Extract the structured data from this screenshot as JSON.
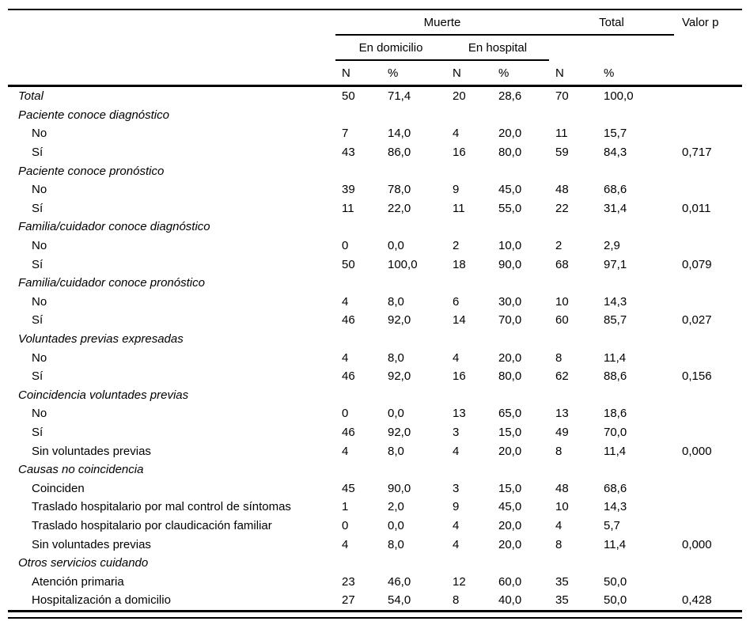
{
  "table": {
    "header": {
      "muerte": "Muerte",
      "total": "Total",
      "valor_p": "Valor p",
      "en_domicilio": "En domicilio",
      "en_hospital": "En hospital",
      "col_n": "N",
      "col_pct": "%"
    },
    "rows": [
      {
        "label": "Total",
        "style": "group",
        "cells": [
          "50",
          "71,4",
          "20",
          "28,6",
          "70",
          "100,0"
        ],
        "valor_p": ""
      },
      {
        "label": "Paciente conoce diagnóstico",
        "style": "group",
        "cells": [
          "",
          "",
          "",
          "",
          "",
          ""
        ],
        "valor_p": ""
      },
      {
        "label": "No",
        "style": "item",
        "cells": [
          "7",
          "14,0",
          "4",
          "20,0",
          "11",
          "15,7"
        ],
        "valor_p": ""
      },
      {
        "label": "Sí",
        "style": "item",
        "cells": [
          "43",
          "86,0",
          "16",
          "80,0",
          "59",
          "84,3"
        ],
        "valor_p": "0,717"
      },
      {
        "label": "Paciente conoce pronóstico",
        "style": "group",
        "cells": [
          "",
          "",
          "",
          "",
          "",
          ""
        ],
        "valor_p": ""
      },
      {
        "label": "No",
        "style": "item",
        "cells": [
          "39",
          "78,0",
          "9",
          "45,0",
          "48",
          "68,6"
        ],
        "valor_p": ""
      },
      {
        "label": "Sí",
        "style": "item",
        "cells": [
          "11",
          "22,0",
          "11",
          "55,0",
          "22",
          "31,4"
        ],
        "valor_p": "0,011"
      },
      {
        "label": "Familia/cuidador conoce diagnóstico",
        "style": "group",
        "cells": [
          "",
          "",
          "",
          "",
          "",
          ""
        ],
        "valor_p": ""
      },
      {
        "label": "No",
        "style": "item",
        "cells": [
          "0",
          "0,0",
          "2",
          "10,0",
          "2",
          "2,9"
        ],
        "valor_p": ""
      },
      {
        "label": "Sí",
        "style": "item",
        "cells": [
          "50",
          "100,0",
          "18",
          "90,0",
          "68",
          "97,1"
        ],
        "valor_p": "0,079"
      },
      {
        "label": "Familia/cuidador conoce pronóstico",
        "style": "group",
        "cells": [
          "",
          "",
          "",
          "",
          "",
          ""
        ],
        "valor_p": ""
      },
      {
        "label": "No",
        "style": "item",
        "cells": [
          "4",
          "8,0",
          "6",
          "30,0",
          "10",
          "14,3"
        ],
        "valor_p": ""
      },
      {
        "label": "Sí",
        "style": "item",
        "cells": [
          "46",
          "92,0",
          "14",
          "70,0",
          "60",
          "85,7"
        ],
        "valor_p": "0,027"
      },
      {
        "label": "Voluntades previas expresadas",
        "style": "group",
        "cells": [
          "",
          "",
          "",
          "",
          "",
          ""
        ],
        "valor_p": ""
      },
      {
        "label": "No",
        "style": "item",
        "cells": [
          "4",
          "8,0",
          "4",
          "20,0",
          "8",
          "11,4"
        ],
        "valor_p": ""
      },
      {
        "label": "Sí",
        "style": "item",
        "cells": [
          "46",
          "92,0",
          "16",
          "80,0",
          "62",
          "88,6"
        ],
        "valor_p": "0,156"
      },
      {
        "label": "Coincidencia voluntades previas",
        "style": "group",
        "cells": [
          "",
          "",
          "",
          "",
          "",
          ""
        ],
        "valor_p": ""
      },
      {
        "label": "No",
        "style": "item",
        "cells": [
          "0",
          "0,0",
          "13",
          "65,0",
          "13",
          "18,6"
        ],
        "valor_p": ""
      },
      {
        "label": "Sí",
        "style": "item",
        "cells": [
          "46",
          "92,0",
          "3",
          "15,0",
          "49",
          "70,0"
        ],
        "valor_p": ""
      },
      {
        "label": "Sin voluntades previas",
        "style": "item",
        "cells": [
          "4",
          "8,0",
          "4",
          "20,0",
          "8",
          "11,4"
        ],
        "valor_p": "0,000"
      },
      {
        "label": "Causas no coincidencia",
        "style": "group",
        "cells": [
          "",
          "",
          "",
          "",
          "",
          ""
        ],
        "valor_p": ""
      },
      {
        "label": "Coinciden",
        "style": "item",
        "cells": [
          "45",
          "90,0",
          "3",
          "15,0",
          "48",
          "68,6"
        ],
        "valor_p": ""
      },
      {
        "label": "Traslado hospitalario por mal control de síntomas",
        "style": "item",
        "cells": [
          "1",
          "2,0",
          "9",
          "45,0",
          "10",
          "14,3"
        ],
        "valor_p": ""
      },
      {
        "label": "Traslado hospitalario por claudicación familiar",
        "style": "item",
        "cells": [
          "0",
          "0,0",
          "4",
          "20,0",
          "4",
          "5,7"
        ],
        "valor_p": ""
      },
      {
        "label": "Sin voluntades previas",
        "style": "item",
        "cells": [
          "4",
          "8,0",
          "4",
          "20,0",
          "8",
          "11,4"
        ],
        "valor_p": "0,000"
      },
      {
        "label": "Otros servicios cuidando",
        "style": "group",
        "cells": [
          "",
          "",
          "",
          "",
          "",
          ""
        ],
        "valor_p": ""
      },
      {
        "label": "Atención primaria",
        "style": "item",
        "cells": [
          "23",
          "46,0",
          "12",
          "60,0",
          "35",
          "50,0"
        ],
        "valor_p": ""
      },
      {
        "label": "Hospitalización a domicilio",
        "style": "item",
        "cells": [
          "27",
          "54,0",
          "8",
          "40,0",
          "35",
          "50,0"
        ],
        "valor_p": "0,428"
      }
    ]
  }
}
